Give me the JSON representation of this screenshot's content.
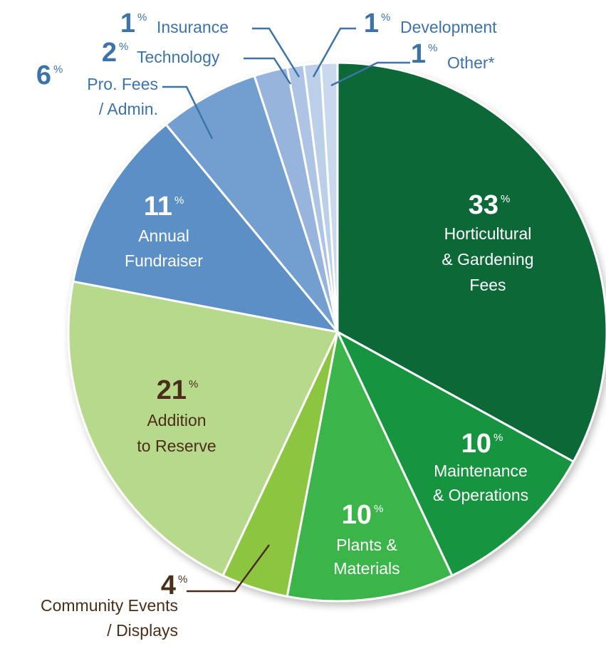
{
  "chart_data": {
    "type": "pie",
    "unit": "%",
    "categories": [
      [
        "Horticultural",
        "& Gardening",
        "Fees"
      ],
      [
        "Maintenance",
        "& Operations"
      ],
      [
        "Plants &",
        "Materials"
      ],
      [
        "Community Events",
        "/ Displays"
      ],
      [
        "Addition",
        "to Reserve"
      ],
      [
        "Annual",
        "Fundraiser"
      ],
      [
        "Pro. Fees",
        "/ Admin."
      ],
      [
        "Technology"
      ],
      [
        "Insurance"
      ],
      [
        "Development"
      ],
      [
        "Other*"
      ]
    ],
    "values": [
      33,
      10,
      10,
      4,
      21,
      11,
      6,
      2,
      1,
      1,
      1
    ],
    "colors": [
      "#0e6838",
      "#13943f",
      "#3bb54a",
      "#8cc63f",
      "#b7d98b",
      "#5b8fc5",
      "#739fd0",
      "#97b4dc",
      "#aec4e4",
      "#bccfe9",
      "#c9d8ee"
    ]
  }
}
